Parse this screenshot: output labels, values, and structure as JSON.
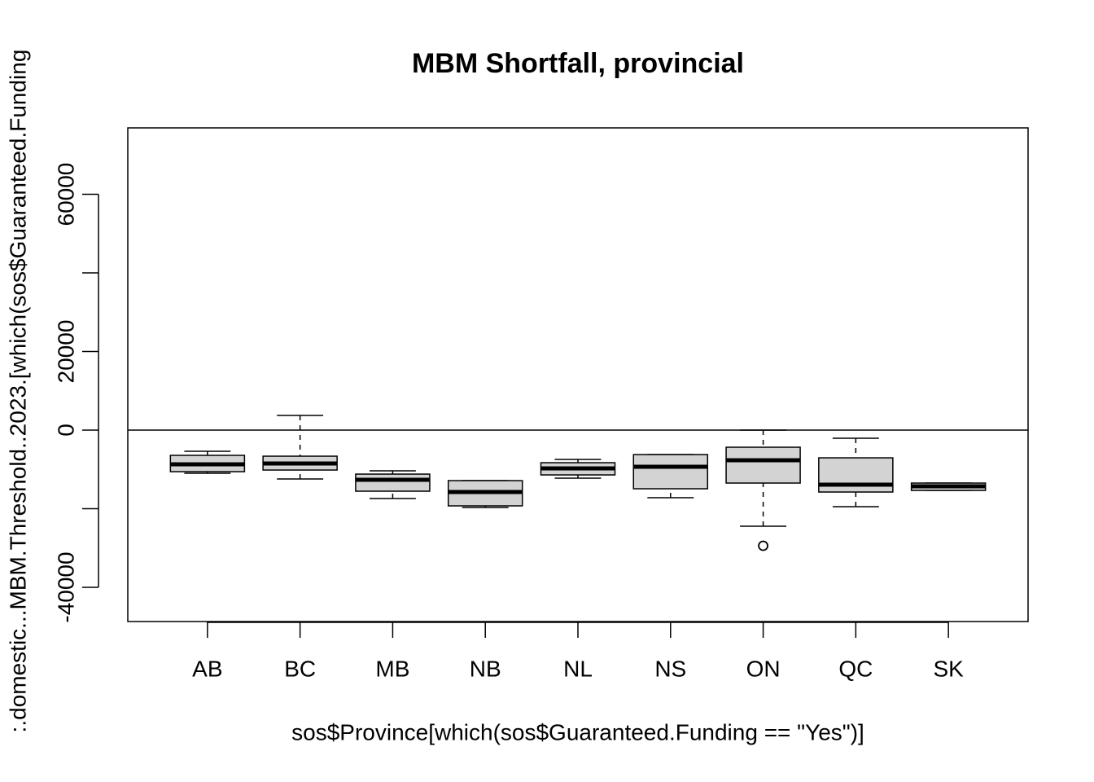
{
  "chart_data": {
    "type": "boxplot",
    "title": "MBM Shortfall, provincial",
    "xlabel": "sos$Province[which(sos$Guaranteed.Funding == \"Yes\")]",
    "ylabel": ":.domestic...MBM.Threshold..2023.[which(sos$Guaranteed.Funding",
    "categories": [
      "AB",
      "BC",
      "MB",
      "NB",
      "NL",
      "NS",
      "ON",
      "QC",
      "SK"
    ],
    "stats": [
      [
        -10980,
        -10570,
        -8700,
        -6420,
        -5390
      ],
      [
        -12440,
        -10160,
        -8500,
        -6630,
        3730
      ],
      [
        -17410,
        -15540,
        -12640,
        -11190,
        -10360
      ],
      [
        -19690,
        -19270,
        -15750,
        -12850,
        -12850
      ],
      [
        -12230,
        -11400,
        -9740,
        -8290,
        -7460
      ],
      [
        -17200,
        -14920,
        -9330,
        -6220,
        -6220
      ],
      [
        -24460,
        -13470,
        -7670,
        -4350,
        0
      ],
      [
        -19480,
        -15750,
        -13890,
        -7050,
        -2070
      ],
      [
        -15340,
        -15340,
        -14300,
        -13470,
        -13470
      ]
    ],
    "outliers": [
      [],
      [],
      [],
      [],
      [],
      [],
      [
        -29430
      ],
      [],
      []
    ],
    "color": "#d3d3d3",
    "hline": 0,
    "ylim": [
      -48700,
      76900
    ],
    "yticks": [
      -40000,
      {
        "value": -20000,
        "label": null
      },
      0,
      20000,
      {
        "value": 40000,
        "label": null
      },
      60000
    ]
  }
}
